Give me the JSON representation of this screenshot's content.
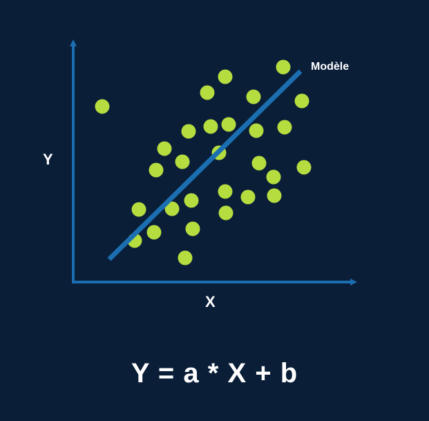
{
  "diagram": {
    "y_label": "Y",
    "x_label": "X",
    "model_label": "Modèle",
    "formula": "Y = a * X + b",
    "colors": {
      "background": "#0a1e38",
      "axis": "#1b6fb0",
      "line": "#1b6fb0",
      "points": "#b6dd3f",
      "text": "#ffffff"
    }
  }
}
